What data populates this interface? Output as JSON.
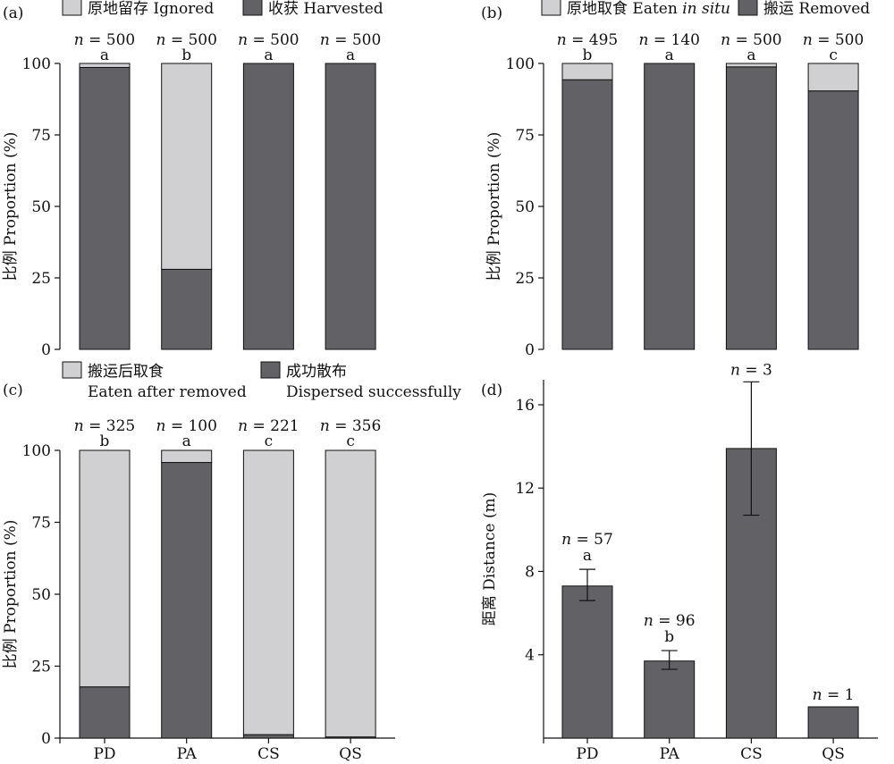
{
  "chart_data": [
    {
      "panel": "(a)",
      "type": "bar",
      "stacked": true,
      "categories": [
        "PD",
        "PA",
        "CS",
        "QS"
      ],
      "series": [
        {
          "name": "收获 Harvested",
          "color": "#626166",
          "values": [
            98.6,
            28.0,
            100,
            100
          ]
        },
        {
          "name": "原地留存 Ignored",
          "color": "#d0d0d2",
          "values": [
            1.4,
            72.0,
            0,
            0
          ]
        }
      ],
      "n_labels": [
        "n = 500",
        "n = 500",
        "n = 500",
        "n = 500"
      ],
      "sig_letters": [
        "a",
        "b",
        "a",
        "a"
      ],
      "ylabel": "比例 Proportion (%)",
      "ylim": [
        0,
        100
      ],
      "yticks": [
        "0",
        "25",
        "50",
        "75",
        "100"
      ],
      "legend_position": "top"
    },
    {
      "panel": "(b)",
      "type": "bar",
      "stacked": true,
      "categories": [
        "PD",
        "PA",
        "CS",
        "QS"
      ],
      "series": [
        {
          "name": "搬运 Removed",
          "color": "#626166",
          "values": [
            94.3,
            100,
            98.8,
            90.4
          ]
        },
        {
          "name": "原地取食 Eaten in situ",
          "color": "#d0d0d2",
          "values": [
            5.7,
            0,
            1.2,
            9.6
          ]
        }
      ],
      "n_labels": [
        "n = 495",
        "n = 140",
        "n = 500",
        "n = 500"
      ],
      "sig_letters": [
        "b",
        "a",
        "a",
        "c"
      ],
      "ylabel": "比例 Proportion (%)",
      "ylim": [
        0,
        100
      ],
      "yticks": [
        "0",
        "25",
        "50",
        "75",
        "100"
      ],
      "legend_position": "top"
    },
    {
      "panel": "(c)",
      "type": "bar",
      "stacked": true,
      "categories": [
        "PD",
        "PA",
        "CS",
        "QS"
      ],
      "series": [
        {
          "name": "成功散布 Dispersed successfully",
          "color": "#626166",
          "values": [
            17.8,
            95.8,
            1.2,
            0.4
          ]
        },
        {
          "name": "搬运后取食 Eaten after removed",
          "color": "#d0d0d2",
          "values": [
            82.2,
            4.2,
            98.8,
            99.6
          ]
        }
      ],
      "n_labels": [
        "n = 325",
        "n = 100",
        "n = 221",
        "n = 356"
      ],
      "sig_letters": [
        "b",
        "a",
        "c",
        "c"
      ],
      "ylabel": "比例 Proportion (%)",
      "ylim": [
        0,
        100
      ],
      "yticks": [
        "0",
        "25",
        "50",
        "75",
        "100"
      ],
      "xticks": [
        "PD",
        "PA",
        "CS",
        "QS"
      ],
      "legend_position": "top"
    },
    {
      "panel": "(d)",
      "type": "bar",
      "stacked": false,
      "categories": [
        "PD",
        "PA",
        "CS",
        "QS"
      ],
      "values": [
        7.3,
        3.7,
        13.9,
        1.5
      ],
      "error_low": [
        6.6,
        3.3,
        10.7,
        null
      ],
      "error_high": [
        8.1,
        4.2,
        17.1,
        null
      ],
      "color": "#626166",
      "n_labels": [
        "n = 57",
        "n = 96",
        "n = 3",
        "n = 1"
      ],
      "sig_letters": [
        "a",
        "b",
        "",
        ""
      ],
      "ylabel": "距离 Distance (m)",
      "ylim": [
        0,
        17.2
      ],
      "yticks": [
        "4",
        "8",
        "12",
        "16"
      ],
      "xticks": [
        "PD",
        "PA",
        "CS",
        "QS"
      ]
    }
  ]
}
